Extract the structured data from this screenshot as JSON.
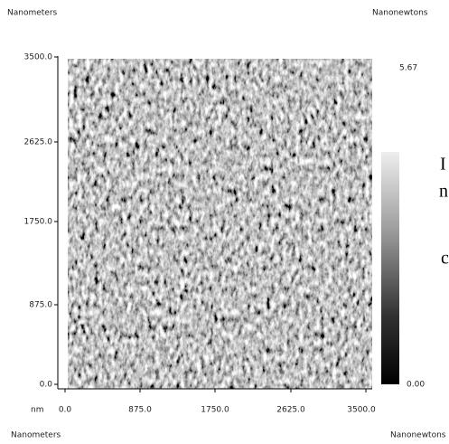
{
  "header": {
    "left_unit": "Nanometers",
    "right_unit": "Nanonewtons"
  },
  "y_axis": {
    "ticks": [
      "3500.0",
      "2625.0",
      "1750.0",
      "875.0",
      "0.0"
    ]
  },
  "x_axis": {
    "unit_label": "nm",
    "ticks": [
      "0.0",
      "875.0",
      "1750.0",
      "2625.0",
      "3500.0"
    ]
  },
  "colorbar": {
    "max_label": "5.67",
    "min_label": "0.00"
  },
  "footer": {
    "left_unit": "Nanometers",
    "right_unit": "Nanonewtons"
  },
  "cropped_text": [
    "I",
    "n",
    "c"
  ]
}
